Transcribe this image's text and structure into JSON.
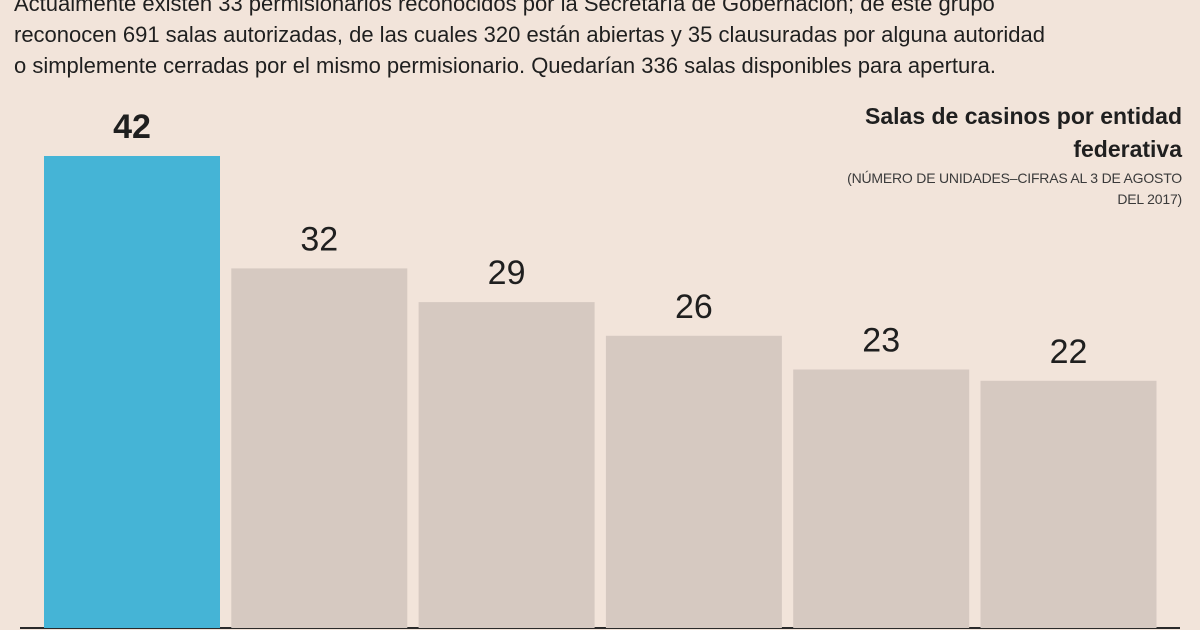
{
  "intro": {
    "line1": "Actualmente existen 33 permisionarios reconocidos por la Secretaría de Gobernación; de este grupo",
    "line2": "reconocen 691 salas autorizadas, de las cuales 320 están abiertas y 35 clausuradas por alguna autoridad",
    "line3": "o simplemente cerradas por el mismo permisionario. Quedarían 336 salas disponibles para apertura."
  },
  "colors": {
    "background": "#f2e4da",
    "highlight": "#45b4d6",
    "bar": "#d6c9c1",
    "text": "#1f1f1f"
  },
  "chart_data": {
    "type": "bar",
    "title": "Salas de casinos por entidad federativa",
    "subtitle": "(NÚMERO DE UNIDADES–CIFRAS AL 3 DE AGOSTO DEL 2017)",
    "categories": [
      "",
      "",
      "",
      "",
      "",
      ""
    ],
    "values": [
      42,
      32,
      29,
      26,
      23,
      22
    ],
    "highlight_index": 0,
    "ylim": [
      0,
      42
    ],
    "grid": false,
    "xlabel": "",
    "ylabel": ""
  }
}
